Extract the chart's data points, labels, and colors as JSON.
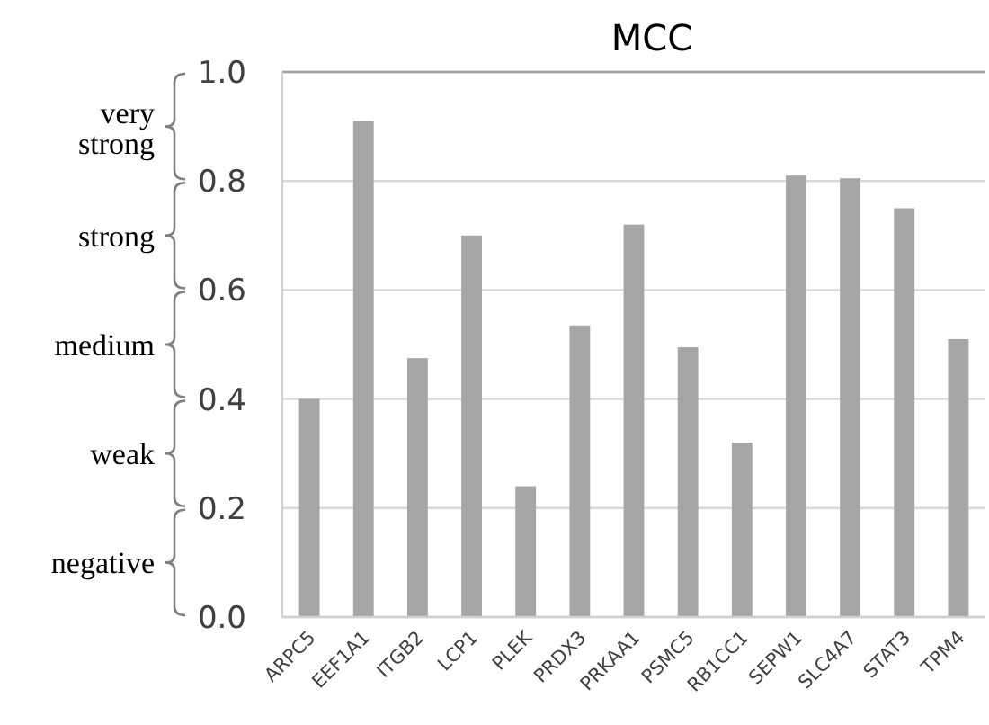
{
  "chart_data": {
    "type": "bar",
    "title": "MCC",
    "categories": [
      "ARPC5",
      "EEF1A1",
      "ITGB2",
      "LCP1",
      "PLEK",
      "PRDX3",
      "PRKAA1",
      "PSMC5",
      "RB1CC1",
      "SEPW1",
      "SLC4A7",
      "STAT3",
      "TPM4"
    ],
    "values": [
      0.4,
      0.91,
      0.475,
      0.7,
      0.24,
      0.535,
      0.72,
      0.495,
      0.32,
      0.81,
      0.805,
      0.75,
      0.51
    ],
    "color": "#a6a6a6",
    "ylim": [
      0,
      1
    ],
    "yticks": [
      {
        "value": 0,
        "label": "0.0"
      },
      {
        "value": 0.2,
        "label": "0.2"
      },
      {
        "value": 0.4,
        "label": "0.4"
      },
      {
        "value": 0.6,
        "label": "0.6"
      },
      {
        "value": 0.8,
        "label": "0.8"
      },
      {
        "value": 1,
        "label": "1.0"
      }
    ],
    "grid": "y",
    "annotations": [
      "negative",
      "weak",
      "medium",
      "strong",
      "very strong"
    ]
  }
}
